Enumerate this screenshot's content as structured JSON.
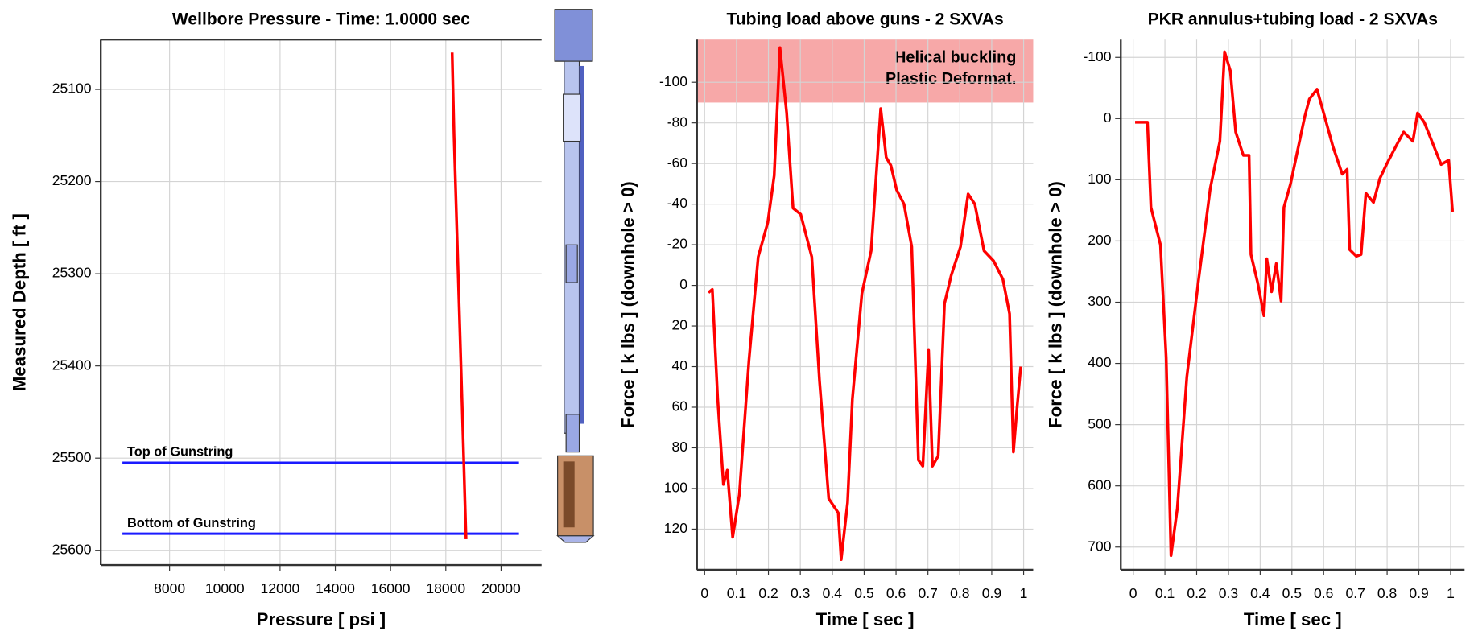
{
  "chart_data": [
    {
      "type": "line",
      "title": "Wellbore Pressure - Time: 1.0000 sec",
      "x_label": "Pressure [ psi ]",
      "y_label": "Measured Depth [ ft ]",
      "xlim": [
        5510,
        21466
      ],
      "ylim": [
        25046,
        25616
      ],
      "y_inverted": true,
      "xticks": [
        8000,
        10000,
        12000,
        14000,
        16000,
        18000,
        20000
      ],
      "yticks": [
        25100,
        25200,
        25300,
        25400,
        25500,
        25600
      ],
      "grid": true,
      "series": [
        {
          "color": "#ff0000",
          "x": [
            18230,
            18300,
            18450,
            18600,
            18730
          ],
          "values": [
            25060,
            25150,
            25300,
            25450,
            25588
          ]
        }
      ],
      "annotations": [
        {
          "label": "Top of Gunstring",
          "value": 25505,
          "color": "#1a1aff"
        },
        {
          "label": "Bottom of Gunstring",
          "value": 25582,
          "color": "#1a1aff"
        }
      ]
    },
    {
      "type": "line",
      "title": "Tubing load above guns - 2 SXVAs",
      "x_label": "Time [ sec ]",
      "y_label": "Force [ k lbs ] (downhole > 0)",
      "xlim": [
        -0.024,
        1.03
      ],
      "ylim": [
        -121,
        140
      ],
      "y_inverted": true,
      "xticks": [
        0,
        0.1,
        0.2,
        0.3,
        0.4,
        0.5,
        0.6,
        0.7,
        0.8,
        0.9,
        1
      ],
      "yticks": [
        -100,
        -80,
        -60,
        -40,
        -20,
        0,
        20,
        40,
        60,
        80,
        100,
        120
      ],
      "grid": true,
      "bands": [
        {
          "y": [
            -121,
            -90
          ],
          "color": "#f7a8a8",
          "labels": [
            "Helical buckling",
            "Plastic Deformat."
          ]
        }
      ],
      "series": [
        {
          "color": "#ff0000",
          "x": [
            0.012,
            0.024,
            0.041,
            0.059,
            0.071,
            0.088,
            0.109,
            0.139,
            0.168,
            0.198,
            0.218,
            0.236,
            0.257,
            0.277,
            0.301,
            0.336,
            0.36,
            0.389,
            0.419,
            0.428,
            0.448,
            0.463,
            0.493,
            0.522,
            0.552,
            0.569,
            0.584,
            0.602,
            0.625,
            0.649,
            0.67,
            0.684,
            0.702,
            0.714,
            0.732,
            0.752,
            0.773,
            0.802,
            0.826,
            0.847,
            0.876,
            0.906,
            0.935,
            0.956,
            0.968,
            0.979,
            0.991
          ],
          "values": [
            3.5,
            2,
            56,
            98,
            91,
            124,
            103,
            37,
            -14,
            -31,
            -54,
            -117,
            -85,
            -38,
            -35,
            -14,
            47,
            105,
            112,
            135,
            107,
            56,
            4,
            -17,
            -87,
            -63,
            -59,
            -47,
            -40,
            -19,
            86,
            89,
            32,
            89,
            84,
            9,
            -5,
            -19,
            -45,
            -40,
            -17,
            -12,
            -3,
            14,
            82,
            61,
            40
          ]
        }
      ]
    },
    {
      "type": "line",
      "title": "PKR annulus+tubing load - 2 SXVAs",
      "x_label": "Time [ sec ]",
      "y_label": "Force [ k lbs ] (downhole > 0)",
      "xlim": [
        -0.039,
        1.044
      ],
      "ylim": [
        -129,
        737
      ],
      "y_inverted": true,
      "xticks": [
        0,
        0.1,
        0.2,
        0.3,
        0.4,
        0.5,
        0.6,
        0.7,
        0.8,
        0.9,
        1
      ],
      "yticks": [
        -100,
        0,
        100,
        200,
        300,
        400,
        500,
        600,
        700
      ],
      "grid": true,
      "series": [
        {
          "color": "#ff0000",
          "x": [
            0.006,
            0.045,
            0.056,
            0.086,
            0.104,
            0.119,
            0.139,
            0.169,
            0.205,
            0.243,
            0.273,
            0.288,
            0.306,
            0.323,
            0.347,
            0.365,
            0.371,
            0.392,
            0.412,
            0.421,
            0.436,
            0.451,
            0.466,
            0.475,
            0.496,
            0.54,
            0.555,
            0.579,
            0.608,
            0.629,
            0.659,
            0.674,
            0.682,
            0.703,
            0.718,
            0.733,
            0.757,
            0.777,
            0.798,
            0.828,
            0.852,
            0.881,
            0.896,
            0.917,
            0.947,
            0.97,
            0.994,
            1.006
          ],
          "values": [
            6,
            6,
            145,
            206,
            391,
            714,
            637,
            422,
            268,
            114,
            37,
            -109,
            -78,
            22,
            60,
            60,
            222,
            268,
            322,
            229,
            283,
            237,
            298,
            145,
            106,
            -2,
            -32,
            -48,
            6,
            45,
            91,
            83,
            214,
            225,
            222,
            122,
            137,
            98,
            75,
            45,
            22,
            37,
            -9,
            6,
            45,
            75,
            68,
            152
          ]
        }
      ]
    }
  ]
}
